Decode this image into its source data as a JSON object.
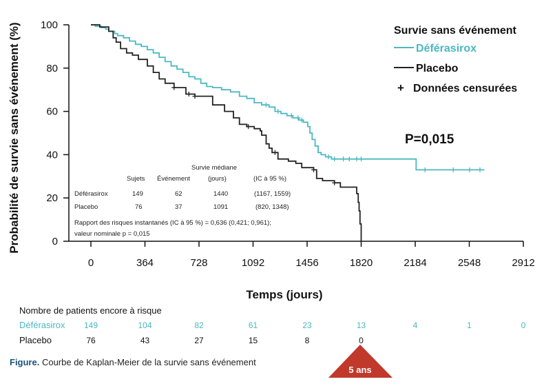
{
  "chart_data": {
    "type": "line",
    "title": "",
    "xlabel": "Temps (jours)",
    "ylabel": "Probabilité de survie sans événement (%)",
    "xlim": [
      0,
      2912
    ],
    "ylim": [
      0,
      100
    ],
    "xticks": [
      0,
      364,
      728,
      1092,
      1456,
      1820,
      2184,
      2548,
      2912
    ],
    "yticks": [
      0,
      20,
      40,
      60,
      80,
      100
    ],
    "colors": {
      "deferasirox": "#4bb8c2",
      "placebo": "#222222",
      "accent": "#c0392b"
    },
    "legend": {
      "title": "Survie sans événement",
      "deferasirox": "Déférasirox",
      "placebo": "Placebo",
      "censored": "Données censurées",
      "censored_symbol": "+"
    },
    "pvalue": "P=0,015",
    "series": [
      {
        "name": "Déférasirox",
        "points": [
          [
            0,
            100
          ],
          [
            30,
            99.3
          ],
          [
            70,
            98.7
          ],
          [
            100,
            98
          ],
          [
            120,
            97
          ],
          [
            160,
            96
          ],
          [
            180,
            95
          ],
          [
            220,
            94
          ],
          [
            260,
            92.5
          ],
          [
            300,
            91
          ],
          [
            340,
            90
          ],
          [
            380,
            88.5
          ],
          [
            420,
            87
          ],
          [
            460,
            85
          ],
          [
            500,
            83
          ],
          [
            540,
            81
          ],
          [
            580,
            79.5
          ],
          [
            620,
            78
          ],
          [
            660,
            76
          ],
          [
            700,
            75
          ],
          [
            740,
            73
          ],
          [
            780,
            71.5
          ],
          [
            820,
            71
          ],
          [
            880,
            70
          ],
          [
            940,
            69
          ],
          [
            1000,
            67
          ],
          [
            1050,
            66
          ],
          [
            1100,
            64
          ],
          [
            1150,
            63
          ],
          [
            1200,
            62
          ],
          [
            1240,
            60
          ],
          [
            1280,
            59
          ],
          [
            1320,
            58
          ],
          [
            1360,
            57
          ],
          [
            1400,
            56
          ],
          [
            1430,
            55
          ],
          [
            1460,
            53
          ],
          [
            1475,
            50
          ],
          [
            1490,
            47
          ],
          [
            1510,
            44
          ],
          [
            1530,
            41
          ],
          [
            1550,
            40
          ],
          [
            1580,
            39
          ],
          [
            1620,
            38
          ],
          [
            1760,
            38
          ],
          [
            1820,
            38
          ],
          [
            2190,
            38
          ],
          [
            2190,
            33
          ],
          [
            2650,
            33
          ]
        ],
        "censored": [
          1180,
          1260,
          1350,
          1395,
          1420,
          1600,
          1640,
          1700,
          1740,
          1790,
          1820,
          2250,
          2440,
          2550,
          2620
        ]
      },
      {
        "name": "Placebo",
        "points": [
          [
            0,
            100
          ],
          [
            60,
            99
          ],
          [
            120,
            97
          ],
          [
            150,
            94
          ],
          [
            170,
            92
          ],
          [
            200,
            89
          ],
          [
            240,
            87
          ],
          [
            280,
            86
          ],
          [
            320,
            84
          ],
          [
            380,
            81
          ],
          [
            420,
            78
          ],
          [
            460,
            75
          ],
          [
            500,
            73
          ],
          [
            560,
            71
          ],
          [
            640,
            68
          ],
          [
            700,
            67
          ],
          [
            800,
            67
          ],
          [
            820,
            63
          ],
          [
            900,
            60
          ],
          [
            960,
            57
          ],
          [
            1000,
            54
          ],
          [
            1050,
            53
          ],
          [
            1100,
            52
          ],
          [
            1140,
            51
          ],
          [
            1150,
            49
          ],
          [
            1180,
            45
          ],
          [
            1200,
            43
          ],
          [
            1220,
            41
          ],
          [
            1260,
            38
          ],
          [
            1330,
            37
          ],
          [
            1380,
            36
          ],
          [
            1420,
            34
          ],
          [
            1500,
            33
          ],
          [
            1520,
            29
          ],
          [
            1560,
            28
          ],
          [
            1640,
            27
          ],
          [
            1680,
            25
          ],
          [
            1780,
            25
          ],
          [
            1790,
            22
          ],
          [
            1800,
            18
          ],
          [
            1806,
            14
          ],
          [
            1812,
            8
          ],
          [
            1820,
            0
          ]
        ],
        "censored": [
          560,
          660,
          700,
          1060,
          1240,
          1500,
          1640
        ]
      }
    ]
  },
  "stats_table": {
    "headers": {
      "subjects": "Sujets",
      "events": "Événement",
      "median_line1": "Survie médiane",
      "median_line2": "(jours)",
      "ci": "(IC à 95 %)"
    },
    "rows": [
      {
        "label": "Déférasirox",
        "subjects": "149",
        "events": "62",
        "median": "1440",
        "ci": "(1167, 1559)"
      },
      {
        "label": "Placebo",
        "subjects": "76",
        "events": "37",
        "median": "1091",
        "ci": "(820, 1348)"
      }
    ],
    "note_line1": "Rapport des risques instantanés (IC à 95 %) = 0,636 (0,421; 0,961);",
    "note_line2": "valeur nominale p = 0,015"
  },
  "risk_table": {
    "title": "Nombre de patients encore à risque",
    "rows": [
      {
        "label": "Déférasirox",
        "values": [
          "149",
          "104",
          "82",
          "61",
          "23",
          "13",
          "4",
          "1",
          "0"
        ]
      },
      {
        "label": "Placebo",
        "values": [
          "76",
          "43",
          "27",
          "15",
          "8",
          "0"
        ]
      }
    ]
  },
  "caption": {
    "prefix": "Figure.",
    "text": " Courbe de Kaplan-Meier de la survie sans événement"
  },
  "badge": {
    "label": "5 ans"
  }
}
